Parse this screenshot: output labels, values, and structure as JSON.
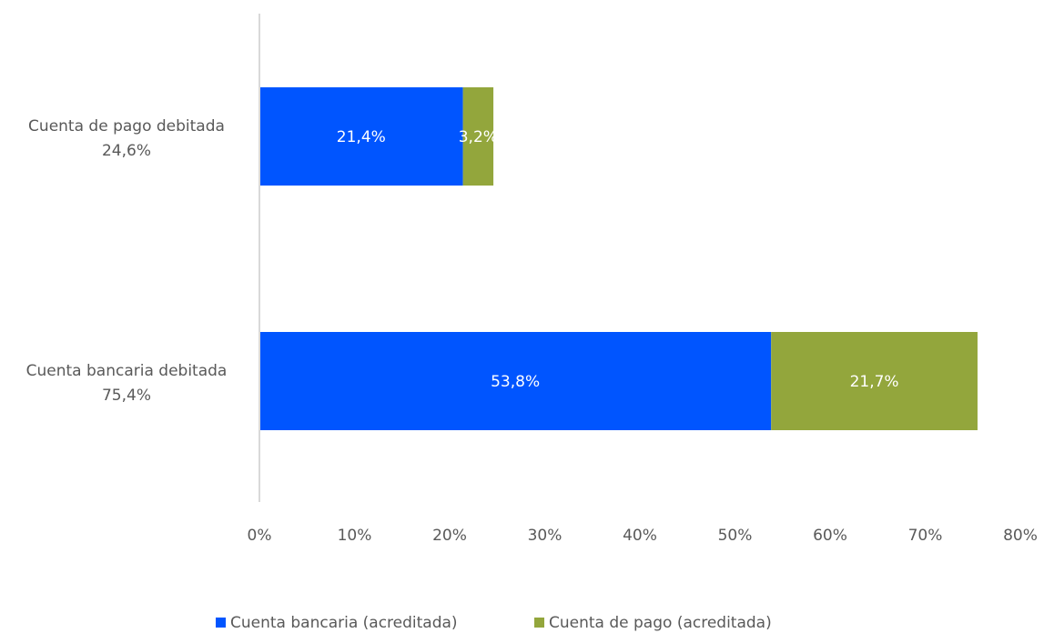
{
  "chart_data": {
    "type": "bar",
    "orientation": "horizontal",
    "stacked": true,
    "title": "",
    "xlabel": "",
    "ylabel": "",
    "xlim": [
      0,
      80
    ],
    "x_ticks": [
      "0%",
      "10%",
      "20%",
      "30%",
      "40%",
      "50%",
      "60%",
      "70%",
      "80%"
    ],
    "grid": false,
    "legend_position": "bottom",
    "categories": [
      {
        "name": "Cuenta de pago debitada",
        "total_label": "24,6%"
      },
      {
        "name": "Cuenta bancaria debitada",
        "total_label": "75,4%"
      }
    ],
    "series": [
      {
        "name": "Cuenta bancaria (acreditada)",
        "color": "#0055ff",
        "values": [
          21.4,
          53.8
        ],
        "labels": [
          "21,4%",
          "53,8%"
        ]
      },
      {
        "name": "Cuenta de pago (acreditada)",
        "color": "#93a63c",
        "values": [
          3.2,
          21.7
        ],
        "labels": [
          "3,2%",
          "21,7%"
        ]
      }
    ]
  }
}
